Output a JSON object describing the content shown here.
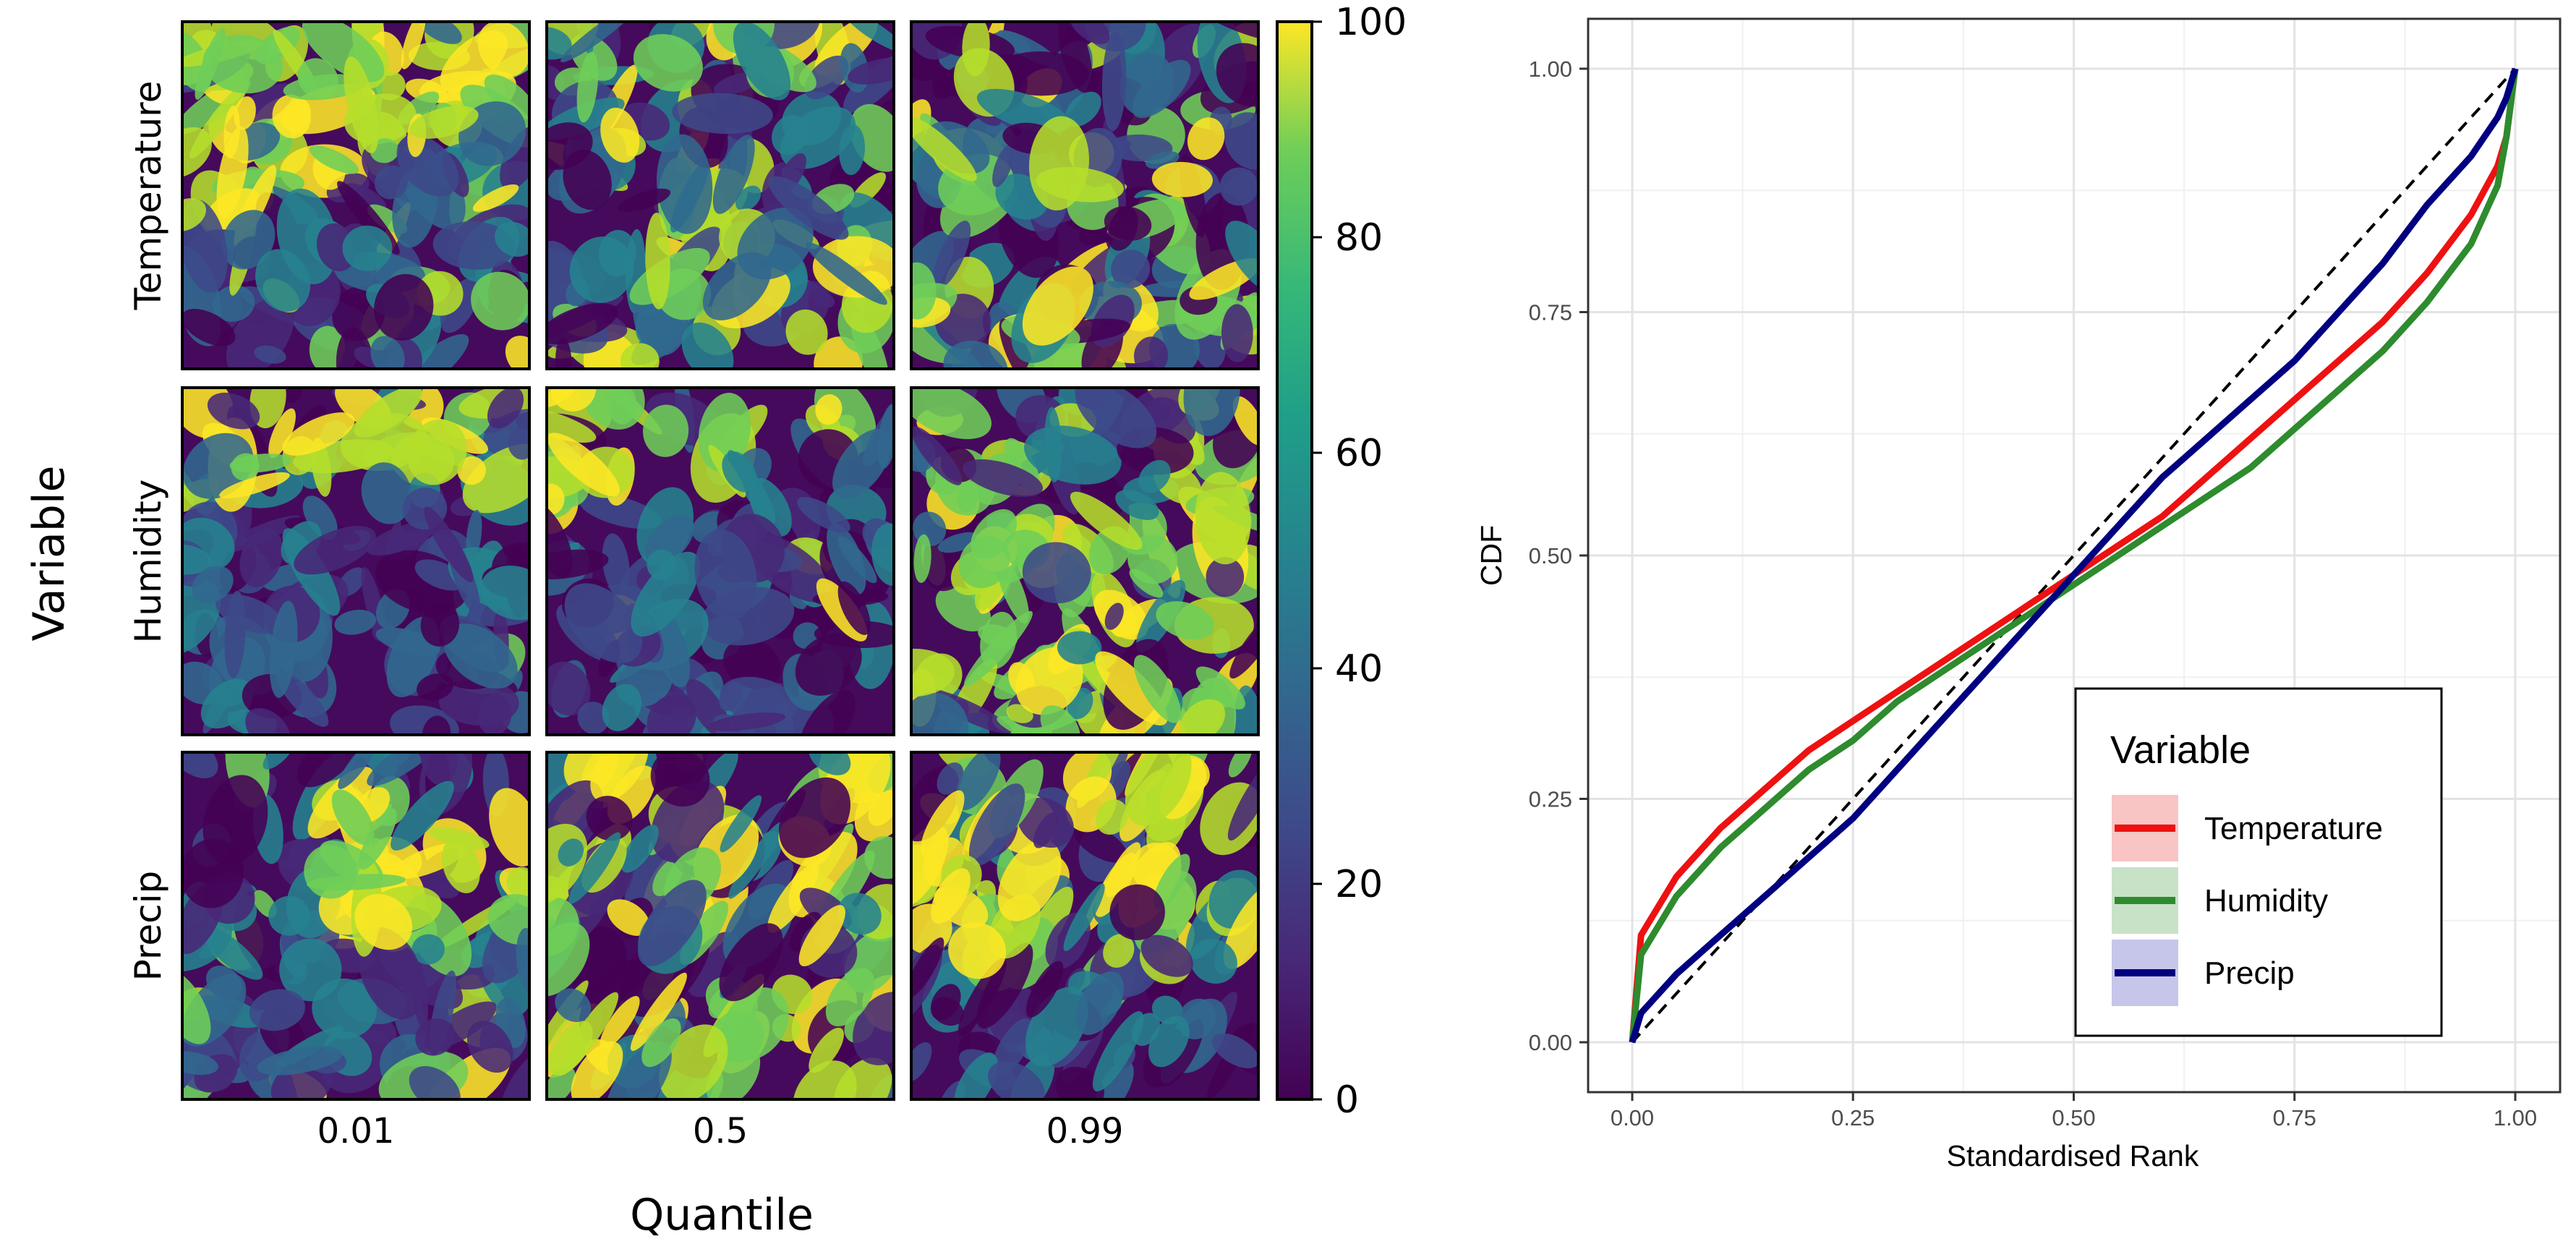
{
  "chart_data": [
    {
      "type": "heatmap",
      "xlabel": "Quantile",
      "ylabel": "Variable",
      "columns": [
        "0.01",
        "0.5",
        "0.99"
      ],
      "rows": [
        "Temperature",
        "Humidity",
        "Precip"
      ],
      "colorbar": {
        "colormap": "viridis",
        "min": 0,
        "max": 100,
        "ticks": [
          "0",
          "20",
          "40",
          "60",
          "80",
          "100"
        ],
        "tick_values": [
          0,
          20,
          40,
          60,
          80,
          100
        ]
      },
      "panels": [
        {
          "row": "Temperature",
          "column": "0.01",
          "pattern": "upper-left bright band above dark lower region",
          "bright_fraction": 0.55
        },
        {
          "row": "Temperature",
          "column": "0.5",
          "pattern": "mostly dark with scattered bright clusters",
          "bright_fraction": 0.3
        },
        {
          "row": "Temperature",
          "column": "0.99",
          "pattern": "mottled upper half, dark lower half",
          "bright_fraction": 0.35
        },
        {
          "row": "Humidity",
          "column": "0.01",
          "pattern": "bright speckles in upper third, dark below",
          "bright_fraction": 0.3
        },
        {
          "row": "Humidity",
          "column": "0.5",
          "pattern": "bright diagonal band at top, dark below",
          "bright_fraction": 0.3
        },
        {
          "row": "Humidity",
          "column": "0.99",
          "pattern": "large bright regions across middle and right",
          "bright_fraction": 0.55
        },
        {
          "row": "Precip",
          "column": "0.01",
          "pattern": "bright blob upper-right on striped textured background",
          "bright_fraction": 0.3
        },
        {
          "row": "Precip",
          "column": "0.5",
          "pattern": "diagonal bright streaks",
          "bright_fraction": 0.5
        },
        {
          "row": "Precip",
          "column": "0.99",
          "pattern": "bright streaks upper area, dark bottom",
          "bright_fraction": 0.45
        }
      ]
    },
    {
      "type": "line",
      "xlabel": "Standardised Rank",
      "ylabel": "CDF",
      "xlim": [
        0,
        1
      ],
      "ylim": [
        0,
        1
      ],
      "x_ticks": [
        "0.00",
        "0.25",
        "0.50",
        "0.75",
        "1.00"
      ],
      "x_tick_values": [
        0,
        0.25,
        0.5,
        0.75,
        1.0
      ],
      "y_ticks": [
        "0.00",
        "0.25",
        "0.50",
        "0.75",
        "1.00"
      ],
      "y_tick_values": [
        0,
        0.25,
        0.5,
        0.75,
        1.0
      ],
      "grid": true,
      "legend": {
        "title": "Variable",
        "position": "bottom-right"
      },
      "reference_line": {
        "style": "dashed",
        "color": "#000000",
        "x": [
          0,
          1
        ],
        "y": [
          0,
          1
        ]
      },
      "series": [
        {
          "name": "Temperature",
          "color": "#ee1111",
          "band_color": "#f8c4c4",
          "x": [
            0,
            0.01,
            0.05,
            0.1,
            0.15,
            0.2,
            0.25,
            0.3,
            0.35,
            0.4,
            0.45,
            0.5,
            0.55,
            0.6,
            0.65,
            0.7,
            0.75,
            0.8,
            0.85,
            0.9,
            0.95,
            0.98,
            0.99,
            1.0
          ],
          "y": [
            0,
            0.11,
            0.17,
            0.22,
            0.26,
            0.3,
            0.33,
            0.36,
            0.39,
            0.42,
            0.45,
            0.48,
            0.51,
            0.54,
            0.58,
            0.62,
            0.66,
            0.7,
            0.74,
            0.79,
            0.85,
            0.9,
            0.93,
            1.0
          ]
        },
        {
          "name": "Humidity",
          "color": "#2e8b2e",
          "band_color": "#c8e2c8",
          "x": [
            0,
            0.01,
            0.05,
            0.1,
            0.15,
            0.2,
            0.25,
            0.3,
            0.35,
            0.4,
            0.45,
            0.5,
            0.55,
            0.6,
            0.65,
            0.7,
            0.75,
            0.8,
            0.85,
            0.9,
            0.95,
            0.98,
            0.99,
            1.0
          ],
          "y": [
            0,
            0.09,
            0.15,
            0.2,
            0.24,
            0.28,
            0.31,
            0.35,
            0.38,
            0.41,
            0.44,
            0.47,
            0.5,
            0.53,
            0.56,
            0.59,
            0.63,
            0.67,
            0.71,
            0.76,
            0.82,
            0.88,
            0.93,
            1.0
          ]
        },
        {
          "name": "Precip",
          "color": "#000080",
          "band_color": "#c6c6ea",
          "x": [
            0,
            0.01,
            0.05,
            0.1,
            0.15,
            0.2,
            0.25,
            0.3,
            0.35,
            0.4,
            0.45,
            0.5,
            0.55,
            0.6,
            0.65,
            0.7,
            0.75,
            0.8,
            0.85,
            0.9,
            0.95,
            0.98,
            0.99,
            1.0
          ],
          "y": [
            0,
            0.03,
            0.07,
            0.11,
            0.15,
            0.19,
            0.23,
            0.28,
            0.33,
            0.38,
            0.43,
            0.48,
            0.53,
            0.58,
            0.62,
            0.66,
            0.7,
            0.75,
            0.8,
            0.86,
            0.91,
            0.95,
            0.97,
            1.0
          ]
        }
      ]
    }
  ]
}
